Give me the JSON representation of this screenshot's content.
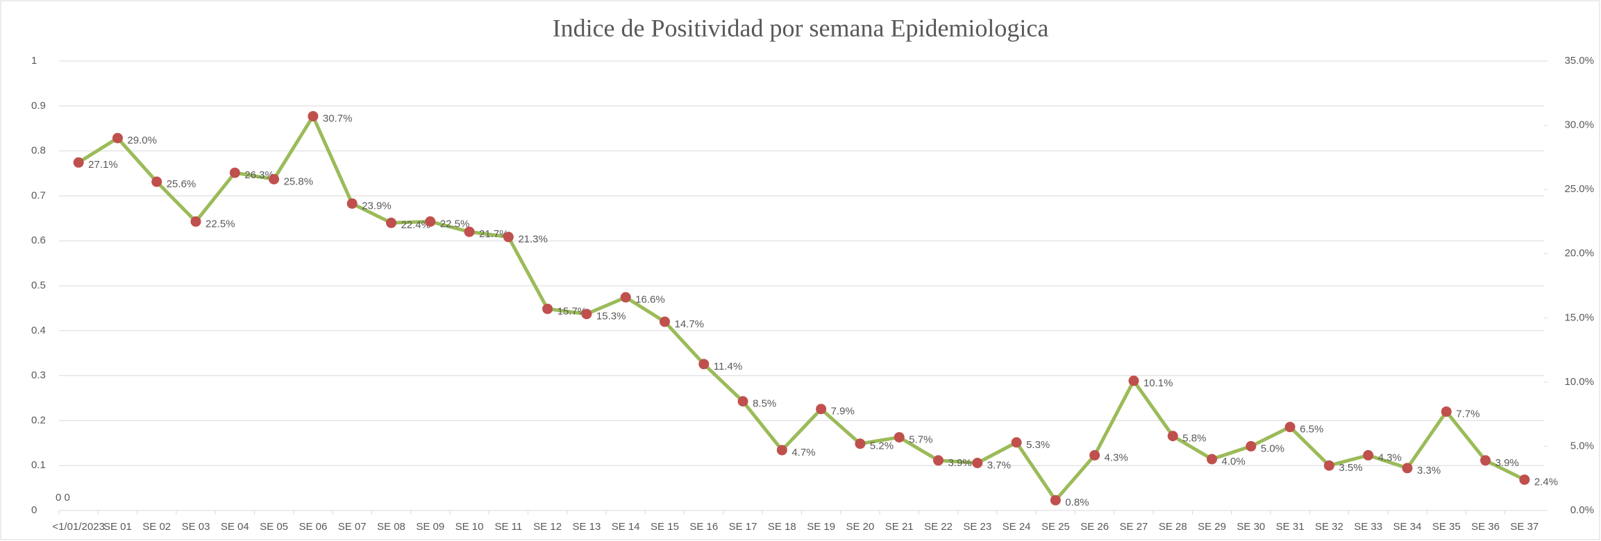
{
  "chart_data": {
    "type": "line",
    "title": "Indice de Positividad por semana Epidemiologica",
    "categories": [
      "<1/01/2023",
      "SE 01",
      "SE 02",
      "SE 03",
      "SE 04",
      "SE 05",
      "SE 06",
      "SE 07",
      "SE 08",
      "SE 09",
      "SE 10",
      "SE 11",
      "SE 12",
      "SE 13",
      "SE 14",
      "SE 15",
      "SE 16",
      "SE 17",
      "SE 18",
      "SE 19",
      "SE 20",
      "SE 21",
      "SE 22",
      "SE 23",
      "SE 24",
      "SE 25",
      "SE 26",
      "SE 27",
      "SE 28",
      "SE 29",
      "SE 30",
      "SE 31",
      "SE 32",
      "SE 33",
      "SE 34",
      "SE 35",
      "SE 36",
      "SE 37"
    ],
    "series": [
      {
        "name": "Indice de Positividad",
        "axis": "y2",
        "color": "#9bbb59",
        "marker_color": "#c0504d",
        "values": [
          27.1,
          29.0,
          25.6,
          22.5,
          26.3,
          25.8,
          30.7,
          23.9,
          22.4,
          22.5,
          21.7,
          21.3,
          15.7,
          15.3,
          16.6,
          14.7,
          11.4,
          8.5,
          4.7,
          7.9,
          5.2,
          5.7,
          3.9,
          3.7,
          5.3,
          0.8,
          4.3,
          10.1,
          5.8,
          4.0,
          5.0,
          6.5,
          3.5,
          4.3,
          3.3,
          7.7,
          3.9,
          2.4
        ],
        "value_labels": [
          "27.1%",
          "29.0%",
          "25.6%",
          "22.5%",
          "26.3%",
          "25.8%",
          "30.7%",
          "23.9%",
          "22.4%",
          "22.5%",
          "21.7%",
          "21.3%",
          "15.7%",
          "15.3%",
          "16.6%",
          "14.7%",
          "11.4%",
          "8.5%",
          "4.7%",
          "7.9%",
          "5.2%",
          "5.7%",
          "3.9%",
          "3.7%",
          "5.3%",
          "0.8%",
          "4.3%",
          "10.1%",
          "5.8%",
          "4.0%",
          "5.0%",
          "6.5%",
          "3.5%",
          "4.3%",
          "3.3%",
          "7.7%",
          "3.9%",
          "2.4%"
        ]
      }
    ],
    "ylim": [
      0,
      1
    ],
    "yticks": [
      0,
      0.1,
      0.2,
      0.3,
      0.4,
      0.5,
      0.6,
      0.7,
      0.8,
      0.9,
      1
    ],
    "y2lim": [
      0,
      35
    ],
    "y2ticks": [
      {
        "value": 0,
        "label": "0.0%"
      },
      {
        "value": 5,
        "label": "5.0%"
      },
      {
        "value": 10,
        "label": "10.0%"
      },
      {
        "value": 15,
        "label": "15.0%"
      },
      {
        "value": 20,
        "label": "20.0%"
      },
      {
        "value": 25,
        "label": "25.0%"
      },
      {
        "value": 30,
        "label": "30.0%"
      },
      {
        "value": 35,
        "label": "35.0%"
      }
    ],
    "annotations": [
      "0 0"
    ],
    "grid": true
  }
}
